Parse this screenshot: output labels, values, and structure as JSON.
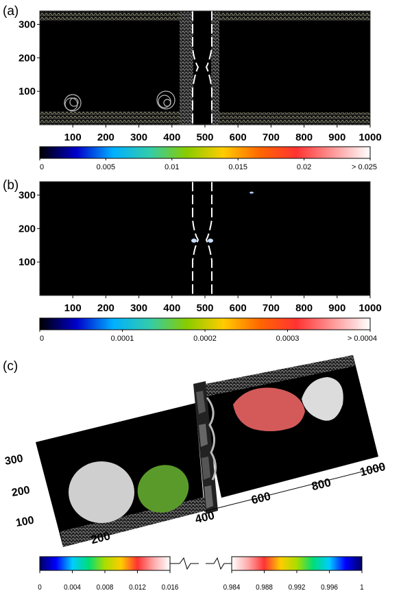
{
  "panels": {
    "a": {
      "label": "(a)"
    },
    "b": {
      "label": "(b)"
    },
    "c": {
      "label": "(c)"
    }
  },
  "chart_data": [
    {
      "type": "heatmap",
      "panel": "(a)",
      "x_ticks": [
        100,
        200,
        300,
        400,
        500,
        600,
        700,
        800,
        900,
        1000
      ],
      "y_ticks": [
        100,
        200,
        300
      ],
      "xlim": [
        0,
        1000
      ],
      "ylim": [
        0,
        340
      ],
      "colorbar": {
        "min": 0,
        "max": 0.025,
        "tick_labels": [
          "0",
          "0.005",
          "0.01",
          "0.015",
          "0.02",
          "> 0.025"
        ],
        "tick_values": [
          0,
          0.005,
          0.01,
          0.015,
          0.02,
          0.025
        ],
        "colors": [
          "#000000",
          "#0000cc",
          "#00b0ff",
          "#33ccaa",
          "#88cc00",
          "#ffcc00",
          "#ff6600",
          "#ff3333",
          "#ff9999",
          "#ffffff"
        ]
      },
      "background": "#000000"
    },
    {
      "type": "heatmap",
      "panel": "(b)",
      "x_ticks": [
        100,
        200,
        300,
        400,
        500,
        600,
        700,
        800,
        900,
        1000
      ],
      "y_ticks": [
        100,
        200,
        300
      ],
      "xlim": [
        0,
        1000
      ],
      "ylim": [
        0,
        340
      ],
      "colorbar": {
        "min": 0,
        "max": 0.0004,
        "tick_labels": [
          "0",
          "0.0001",
          "0.0002",
          "0.0003",
          "> 0.0004"
        ],
        "tick_values": [
          0,
          0.0001,
          0.0002,
          0.0003,
          0.0004
        ],
        "colors": [
          "#000000",
          "#0000cc",
          "#00b0ff",
          "#33ccaa",
          "#88cc00",
          "#ffcc00",
          "#ff6600",
          "#ff3333",
          "#ff9999",
          "#ffffff"
        ]
      },
      "background": "#000000"
    },
    {
      "type": "heatmap",
      "panel": "(c)",
      "x_ticks": [
        200,
        400,
        600,
        800,
        1000
      ],
      "y_ticks": [
        100,
        200,
        300
      ],
      "colorbar": {
        "segments": [
          {
            "tick_labels": [
              "0",
              "0.004",
              "0.008",
              "0.012",
              "0.016"
            ],
            "tick_values": [
              0,
              0.004,
              0.008,
              0.012,
              0.016
            ],
            "colors": [
              "#000066",
              "#0000ff",
              "#00ccff",
              "#00dd77",
              "#aadd00",
              "#ffcc00",
              "#ff3333",
              "#ffaaaa",
              "#ffffff"
            ]
          },
          {
            "tick_labels": [
              "0.984",
              "0.988",
              "0.992",
              "0.996",
              "1"
            ],
            "tick_values": [
              0.984,
              0.988,
              0.992,
              0.996,
              1
            ],
            "colors": [
              "#ffffff",
              "#ffaaaa",
              "#ff3333",
              "#ffcc00",
              "#aadd00",
              "#00dd77",
              "#00ccff",
              "#0000ff",
              "#000066"
            ]
          }
        ]
      },
      "regions": [
        {
          "color": "#cfcfcf"
        },
        {
          "color": "#5a9a2a"
        },
        {
          "color": "#d45a5a"
        },
        {
          "color": "#dcdcdc"
        }
      ]
    }
  ]
}
